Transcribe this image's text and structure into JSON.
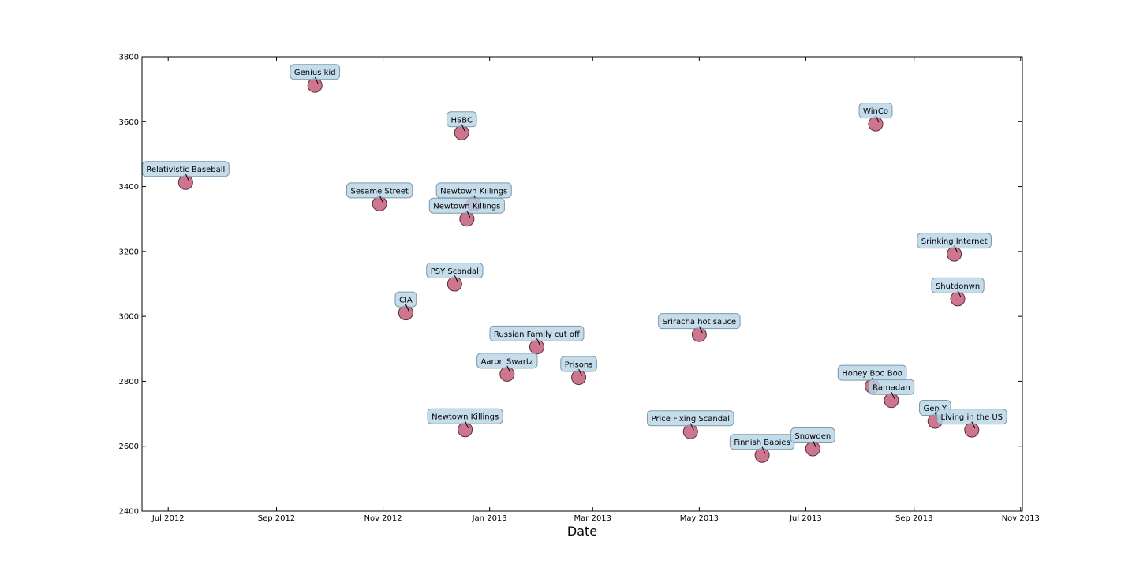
{
  "chart_data": {
    "type": "scatter",
    "title": "",
    "xlabel": "Date",
    "ylabel": "",
    "x_ticks": [
      "Jul 2012",
      "Sep 2012",
      "Nov 2012",
      "Jan 2013",
      "Mar 2013",
      "May 2013",
      "Jul 2013",
      "Sep 2013",
      "Nov 2013"
    ],
    "y_ticks": [
      2400,
      2600,
      2800,
      3000,
      3200,
      3400,
      3600,
      3800
    ],
    "xlim": [
      "2012-06-16",
      "2013-11-02"
    ],
    "ylim": [
      2400,
      3800
    ],
    "grid": false,
    "point_color": "#c0506e",
    "label_box_color": "#b8d4e6",
    "points": [
      {
        "date": "2012-07-11",
        "value": 3413,
        "label": "Relativistic Baseball"
      },
      {
        "date": "2012-09-23",
        "value": 3712,
        "label": "Genius kid"
      },
      {
        "date": "2012-10-30",
        "value": 3347,
        "label": "Sesame Street"
      },
      {
        "date": "2012-11-14",
        "value": 3011,
        "label": "CIA"
      },
      {
        "date": "2012-12-12",
        "value": 3100,
        "label": "PSY Scandal"
      },
      {
        "date": "2012-12-16",
        "value": 3566,
        "label": "HSBC"
      },
      {
        "date": "2012-12-23",
        "value": 3347,
        "label": "Newtown Killings"
      },
      {
        "date": "2012-12-19",
        "value": 3300,
        "label": "Newtown Killings"
      },
      {
        "date": "2012-12-18",
        "value": 2651,
        "label": "Newtown Killings"
      },
      {
        "date": "2013-01-11",
        "value": 2822,
        "label": "Aaron Swartz"
      },
      {
        "date": "2013-01-28",
        "value": 2906,
        "label": "Russian Family cut off"
      },
      {
        "date": "2013-02-21",
        "value": 2812,
        "label": "Prisons"
      },
      {
        "date": "2013-04-26",
        "value": 2645,
        "label": "Price Fixing Scandal"
      },
      {
        "date": "2013-05-01",
        "value": 2944,
        "label": "Sriracha hot sauce"
      },
      {
        "date": "2013-06-06",
        "value": 2572,
        "label": "Finnish Babies"
      },
      {
        "date": "2013-07-05",
        "value": 2592,
        "label": "Snowden"
      },
      {
        "date": "2013-08-10",
        "value": 3593,
        "label": "WinCo"
      },
      {
        "date": "2013-08-08",
        "value": 2785,
        "label": "Honey Boo Boo"
      },
      {
        "date": "2013-08-19",
        "value": 2741,
        "label": "Ramadan"
      },
      {
        "date": "2013-09-13",
        "value": 2677,
        "label": "Gen Y"
      },
      {
        "date": "2013-09-24",
        "value": 3192,
        "label": "Srinking Internet"
      },
      {
        "date": "2013-09-26",
        "value": 3054,
        "label": "Shutdonwn"
      },
      {
        "date": "2013-10-04",
        "value": 2650,
        "label": "Living in the US"
      }
    ]
  }
}
